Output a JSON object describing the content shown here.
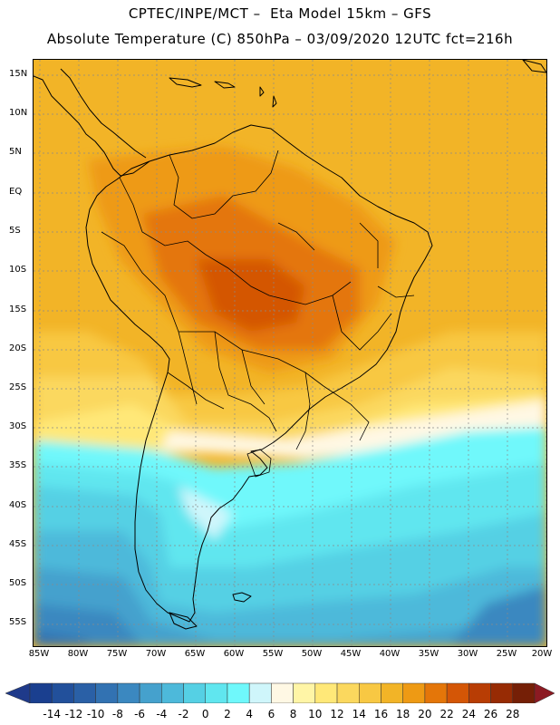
{
  "header": {
    "line1": "CPTEC/INPE/MCT –  Eta Model 15km – GFS",
    "line2": "Absolute Temperature (C) 850hPa – 03/09/2020 12UTC fct=216h"
  },
  "axes": {
    "lat_labels": [
      "15N",
      "10N",
      "5N",
      "EQ",
      "5S",
      "10S",
      "15S",
      "20S",
      "25S",
      "30S",
      "35S",
      "40S",
      "45S",
      "50S",
      "55S"
    ],
    "lon_labels": [
      "85W",
      "80W",
      "75W",
      "70W",
      "65W",
      "60W",
      "55W",
      "50W",
      "45W",
      "40W",
      "35W",
      "30W",
      "25W",
      "20W"
    ]
  },
  "colorbar": {
    "labels": [
      "-14",
      "-12",
      "-10",
      "-8",
      "-6",
      "-4",
      "-2",
      "0",
      "2",
      "4",
      "6",
      "8",
      "10",
      "12",
      "14",
      "16",
      "18",
      "20",
      "22",
      "24",
      "26",
      "28"
    ],
    "colors": [
      "#1a3f8f",
      "#22509b",
      "#2a60a6",
      "#3272b2",
      "#3b88c0",
      "#45a1cd",
      "#4db9da",
      "#55d0e4",
      "#60e6ef",
      "#6ff8fb",
      "#cff6fb",
      "#fff8e4",
      "#fff5a6",
      "#ffe878",
      "#fbd85e",
      "#f8c843",
      "#f2b427",
      "#ee9a14",
      "#e47609",
      "#d45606",
      "#b83d04",
      "#972b04",
      "#751f06"
    ],
    "under_color": "#1f3a8a",
    "over_color": "#8c1a22"
  }
}
